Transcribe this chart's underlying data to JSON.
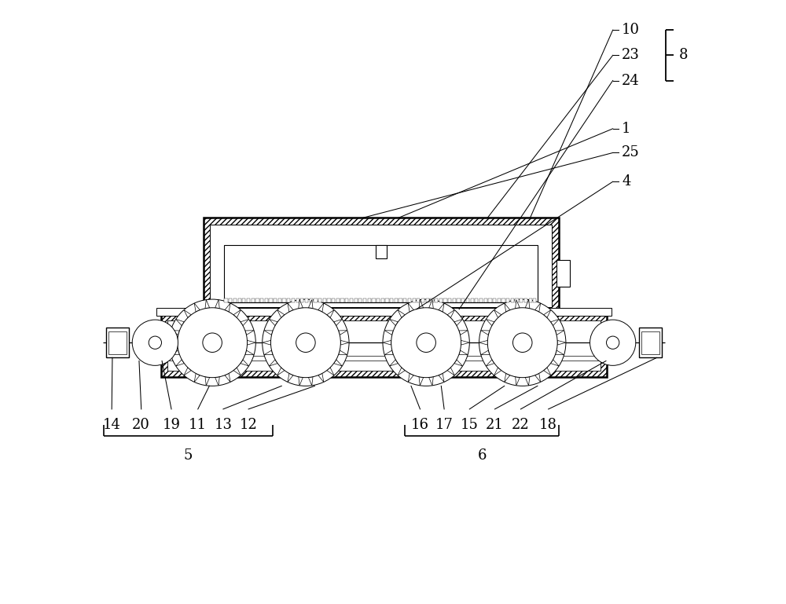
{
  "bg_color": "#ffffff",
  "line_color": "#000000",
  "fig_width": 10.0,
  "fig_height": 7.69,
  "dpi": 100,
  "fontsize": 13
}
